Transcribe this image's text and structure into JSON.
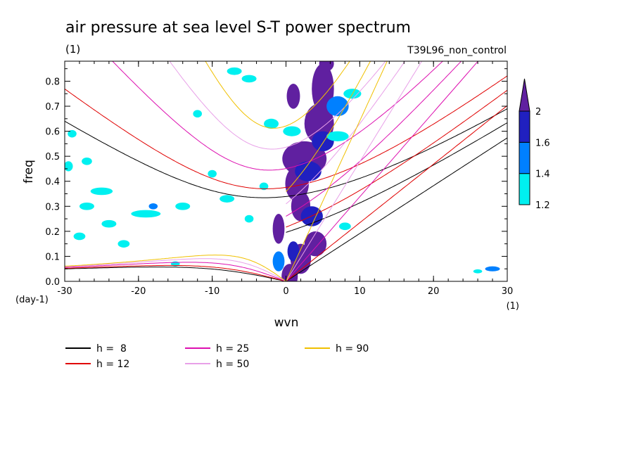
{
  "chart_data": {
    "type": "line",
    "title": "air pressure at sea level S-T power spectrum",
    "subtitle_left": "(1)",
    "subtitle_right": "T39L96_non_control",
    "xlabel": "wvn",
    "ylabel": "freq",
    "x_unit_label": "(1)",
    "y_unit_label": "(day-1)",
    "xlim": [
      -30,
      30
    ],
    "ylim": [
      0,
      0.88
    ],
    "xticks": [
      -30,
      -20,
      -10,
      0,
      10,
      20,
      30
    ],
    "xtick_labels": [
      "-30",
      "-20",
      "-10",
      "0",
      "10",
      "20",
      "30"
    ],
    "yticks": [
      0,
      0.1,
      0.2,
      0.3,
      0.4,
      0.5,
      0.6,
      0.7,
      0.8
    ],
    "ytick_labels": [
      "0.0",
      "0.1",
      "0.2",
      "0.3",
      "0.4",
      "0.5",
      "0.6",
      "0.7",
      "0.8"
    ],
    "grid": false,
    "series": [
      {
        "name": "h =  8",
        "h": 8,
        "color": "#000000"
      },
      {
        "name": "h = 12",
        "h": 12,
        "color": "#e00000"
      },
      {
        "name": "h = 25",
        "h": 25,
        "color": "#dd10b0"
      },
      {
        "name": "h = 50",
        "h": 50,
        "color": "#e8a0e8"
      },
      {
        "name": "h = 90",
        "h": 90,
        "color": "#f0c000"
      }
    ],
    "colorbar": {
      "levels": [
        1.2,
        1.4,
        1.6,
        2
      ],
      "labels": [
        "1.2",
        "1.4",
        "1.6",
        "2"
      ],
      "colors": [
        "#00f0f0",
        "#0080ff",
        "#2020c0",
        "#6020a0"
      ],
      "extend": "max"
    },
    "filled_contours": [
      {
        "x": 0.5,
        "y": 0.02,
        "rx": 1.1,
        "ry": 0.05,
        "level": 3
      },
      {
        "x": 2.0,
        "y": 0.09,
        "rx": 1.4,
        "ry": 0.06,
        "level": 3
      },
      {
        "x": 4.0,
        "y": 0.15,
        "rx": 1.5,
        "ry": 0.05,
        "level": 3
      },
      {
        "x": -1.0,
        "y": 0.21,
        "rx": 0.8,
        "ry": 0.06,
        "level": 3
      },
      {
        "x": 2.0,
        "y": 0.3,
        "rx": 1.3,
        "ry": 0.06,
        "level": 3
      },
      {
        "x": 1.5,
        "y": 0.39,
        "rx": 1.6,
        "ry": 0.07,
        "level": 3
      },
      {
        "x": 2.5,
        "y": 0.49,
        "rx": 3.0,
        "ry": 0.07,
        "level": 3
      },
      {
        "x": 4.5,
        "y": 0.63,
        "rx": 2.0,
        "ry": 0.08,
        "level": 3
      },
      {
        "x": 5.0,
        "y": 0.77,
        "rx": 1.5,
        "ry": 0.1,
        "level": 3
      },
      {
        "x": 1.0,
        "y": 0.74,
        "rx": 0.9,
        "ry": 0.05,
        "level": 3
      },
      {
        "x": 5.5,
        "y": 0.87,
        "rx": 1.0,
        "ry": 0.03,
        "level": 3
      },
      {
        "x": 5.0,
        "y": 0.56,
        "rx": 1.5,
        "ry": 0.04,
        "level": 2
      },
      {
        "x": 3.0,
        "y": 0.44,
        "rx": 1.8,
        "ry": 0.04,
        "level": 2
      },
      {
        "x": 3.5,
        "y": 0.26,
        "rx": 1.5,
        "ry": 0.04,
        "level": 2
      },
      {
        "x": 1.0,
        "y": 0.12,
        "rx": 0.8,
        "ry": 0.04,
        "level": 2
      },
      {
        "x": 7.0,
        "y": 0.7,
        "rx": 1.5,
        "ry": 0.04,
        "level": 1
      },
      {
        "x": -1.0,
        "y": 0.08,
        "rx": 0.8,
        "ry": 0.04,
        "level": 1
      },
      {
        "x": 0.8,
        "y": 0.6,
        "rx": 1.2,
        "ry": 0.02,
        "level": 0
      },
      {
        "x": -2.0,
        "y": 0.63,
        "rx": 1.0,
        "ry": 0.02,
        "level": 0
      },
      {
        "x": 7.0,
        "y": 0.58,
        "rx": 1.5,
        "ry": 0.02,
        "level": 0
      },
      {
        "x": 9.0,
        "y": 0.75,
        "rx": 1.2,
        "ry": 0.02,
        "level": 0
      },
      {
        "x": -7.0,
        "y": 0.84,
        "rx": 1.0,
        "ry": 0.015,
        "level": 0
      },
      {
        "x": -5.0,
        "y": 0.81,
        "rx": 1.0,
        "ry": 0.015,
        "level": 0
      },
      {
        "x": -19.0,
        "y": 0.27,
        "rx": 2.0,
        "ry": 0.015,
        "level": 0
      },
      {
        "x": -14.0,
        "y": 0.3,
        "rx": 1.0,
        "ry": 0.015,
        "level": 0
      },
      {
        "x": -25.0,
        "y": 0.36,
        "rx": 1.5,
        "ry": 0.015,
        "level": 0
      },
      {
        "x": -24.0,
        "y": 0.23,
        "rx": 1.0,
        "ry": 0.015,
        "level": 0
      },
      {
        "x": -27.0,
        "y": 0.3,
        "rx": 1.0,
        "ry": 0.015,
        "level": 0
      },
      {
        "x": -29.5,
        "y": 0.46,
        "rx": 0.6,
        "ry": 0.02,
        "level": 0
      },
      {
        "x": -27.0,
        "y": 0.48,
        "rx": 0.7,
        "ry": 0.015,
        "level": 0
      },
      {
        "x": -8.0,
        "y": 0.33,
        "rx": 1.0,
        "ry": 0.015,
        "level": 0
      },
      {
        "x": -10.0,
        "y": 0.43,
        "rx": 0.6,
        "ry": 0.015,
        "level": 0
      },
      {
        "x": -3.0,
        "y": 0.38,
        "rx": 0.6,
        "ry": 0.015,
        "level": 0
      },
      {
        "x": -29.0,
        "y": 0.59,
        "rx": 0.6,
        "ry": 0.015,
        "level": 0
      },
      {
        "x": -12.0,
        "y": 0.67,
        "rx": 0.6,
        "ry": 0.015,
        "level": 0
      },
      {
        "x": -22.0,
        "y": 0.15,
        "rx": 0.8,
        "ry": 0.015,
        "level": 0
      },
      {
        "x": -28.0,
        "y": 0.18,
        "rx": 0.8,
        "ry": 0.015,
        "level": 0
      },
      {
        "x": -15.0,
        "y": 0.07,
        "rx": 0.6,
        "ry": 0.01,
        "level": 0
      },
      {
        "x": -5.0,
        "y": 0.25,
        "rx": 0.6,
        "ry": 0.015,
        "level": 0
      },
      {
        "x": 8.0,
        "y": 0.22,
        "rx": 0.8,
        "ry": 0.015,
        "level": 0
      },
      {
        "x": 28.0,
        "y": 0.05,
        "rx": 1.0,
        "ry": 0.01,
        "level": 1
      },
      {
        "x": 26.0,
        "y": 0.04,
        "rx": 0.6,
        "ry": 0.008,
        "level": 0
      },
      {
        "x": -18.0,
        "y": 0.3,
        "rx": 0.6,
        "ry": 0.012,
        "level": 1
      }
    ]
  }
}
